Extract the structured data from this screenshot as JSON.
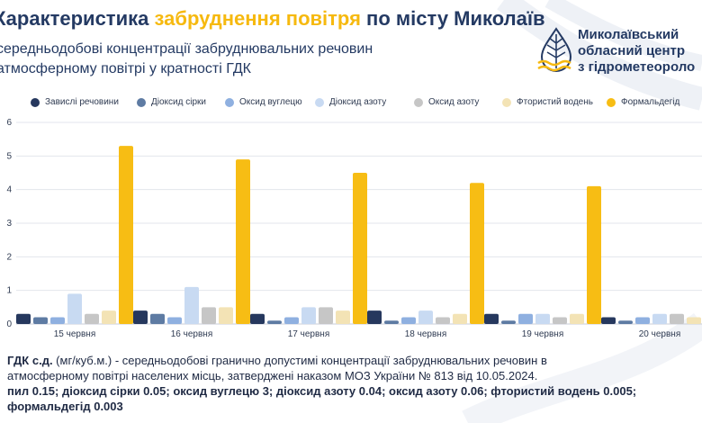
{
  "header": {
    "title_prefix": "Характеристика ",
    "title_accent": "забруднення повітря",
    "title_suffix": " по місту Миколаїв",
    "subtitle_line1": "середньодобові концентрації забруднювальних речовин",
    "subtitle_line2": "атмосферному повітрі у кратності ГДК"
  },
  "org": {
    "line1": "Миколаївський",
    "line2": "обласний центр",
    "line3": "з гідрометеороло",
    "logo_icon": "hydrometeorology-drop-icon"
  },
  "colors": {
    "title_accent": "#f6b90f",
    "text_dark": "#243a63"
  },
  "chart_data": {
    "type": "bar",
    "categories": [
      "15 червня",
      "16 червня",
      "17 червня",
      "18 червня",
      "19 червня",
      "20 червня"
    ],
    "series": [
      {
        "name": "Завислі речовини",
        "color": "#26385e",
        "values": [
          0.3,
          0.4,
          0.3,
          0.4,
          0.3,
          0.2
        ]
      },
      {
        "name": "Діоксид сірки",
        "color": "#5e7ba3",
        "values": [
          0.2,
          0.3,
          0.1,
          0.1,
          0.1,
          0.1
        ]
      },
      {
        "name": "Оксид вуглецю",
        "color": "#8fb0e0",
        "values": [
          0.2,
          0.2,
          0.2,
          0.2,
          0.3,
          0.2
        ]
      },
      {
        "name": "Діоксид азоту",
        "color": "#c8daf2",
        "values": [
          0.9,
          1.1,
          0.5,
          0.4,
          0.3,
          0.3
        ]
      },
      {
        "name": "Оксид азоту",
        "color": "#c6c6c6",
        "values": [
          0.3,
          0.5,
          0.5,
          0.2,
          0.2,
          0.3
        ]
      },
      {
        "name": "Фтористий водень",
        "color": "#f3e3b5",
        "values": [
          0.4,
          0.5,
          0.4,
          0.3,
          0.3,
          0.2
        ]
      },
      {
        "name": "Формальдегід",
        "color": "#f7bd14",
        "values": [
          5.3,
          4.9,
          4.5,
          4.2,
          4.1,
          3.9
        ]
      }
    ],
    "yticks": [
      "0",
      "1",
      "2",
      "3",
      "4",
      "5",
      "6"
    ],
    "ylim": [
      0,
      6
    ],
    "grid": true,
    "legend": "top"
  },
  "footnote": {
    "line1_bold": "ГДК с.д.",
    "line1_rest": " (мг/куб.м.) - середньодобові гранично допустимі концентрації забруднювальних речовин в",
    "line2": "атмосферному повітрі населених місць, затверджені наказом МОЗ України № 813 від 10.05.2024.",
    "line3": "пил 0.15; діоксид сірки 0.05; оксид вуглецю 3; діоксид азоту 0.04; оксид азоту 0.06; фтористий водень 0.005;",
    "line4": "формальдегід 0.003"
  }
}
